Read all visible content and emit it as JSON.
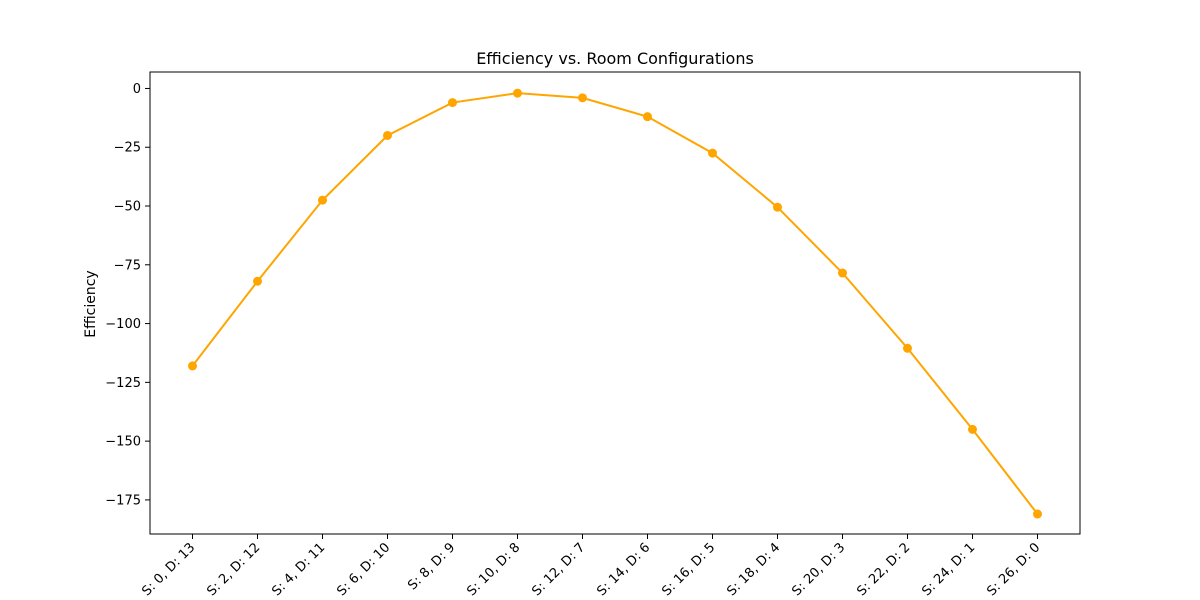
{
  "chart_data": {
    "type": "line",
    "title": "Efficiency vs. Room Configurations",
    "xlabel": "",
    "ylabel": "Efficiency",
    "categories": [
      "S: 0, D: 13",
      "S: 2, D: 12",
      "S: 4, D: 11",
      "S: 6, D: 10",
      "S: 8, D: 9",
      "S: 10, D: 8",
      "S: 12, D: 7",
      "S: 14, D: 6",
      "S: 16, D: 5",
      "S: 18, D: 4",
      "S: 20, D: 3",
      "S: 22, D: 2",
      "S: 24, D: 1",
      "S: 26, D: 0"
    ],
    "series": [
      {
        "color": "#FFA500",
        "marker": "circle",
        "values": [
          -118,
          -82,
          -47.5,
          -20,
          -6,
          -2,
          -4,
          -12,
          -27.5,
          -50.5,
          -78.5,
          -110.5,
          -145,
          -181
        ]
      }
    ],
    "ylim": [
      -189.5,
      7
    ],
    "yticks": [
      0,
      -25,
      -50,
      -75,
      -100,
      -125,
      -150,
      -175
    ],
    "ytick_labels": [
      "0",
      "−25",
      "−50",
      "−75",
      "−100",
      "−125",
      "−150",
      "−175"
    ],
    "grid": false,
    "legend": "none"
  }
}
